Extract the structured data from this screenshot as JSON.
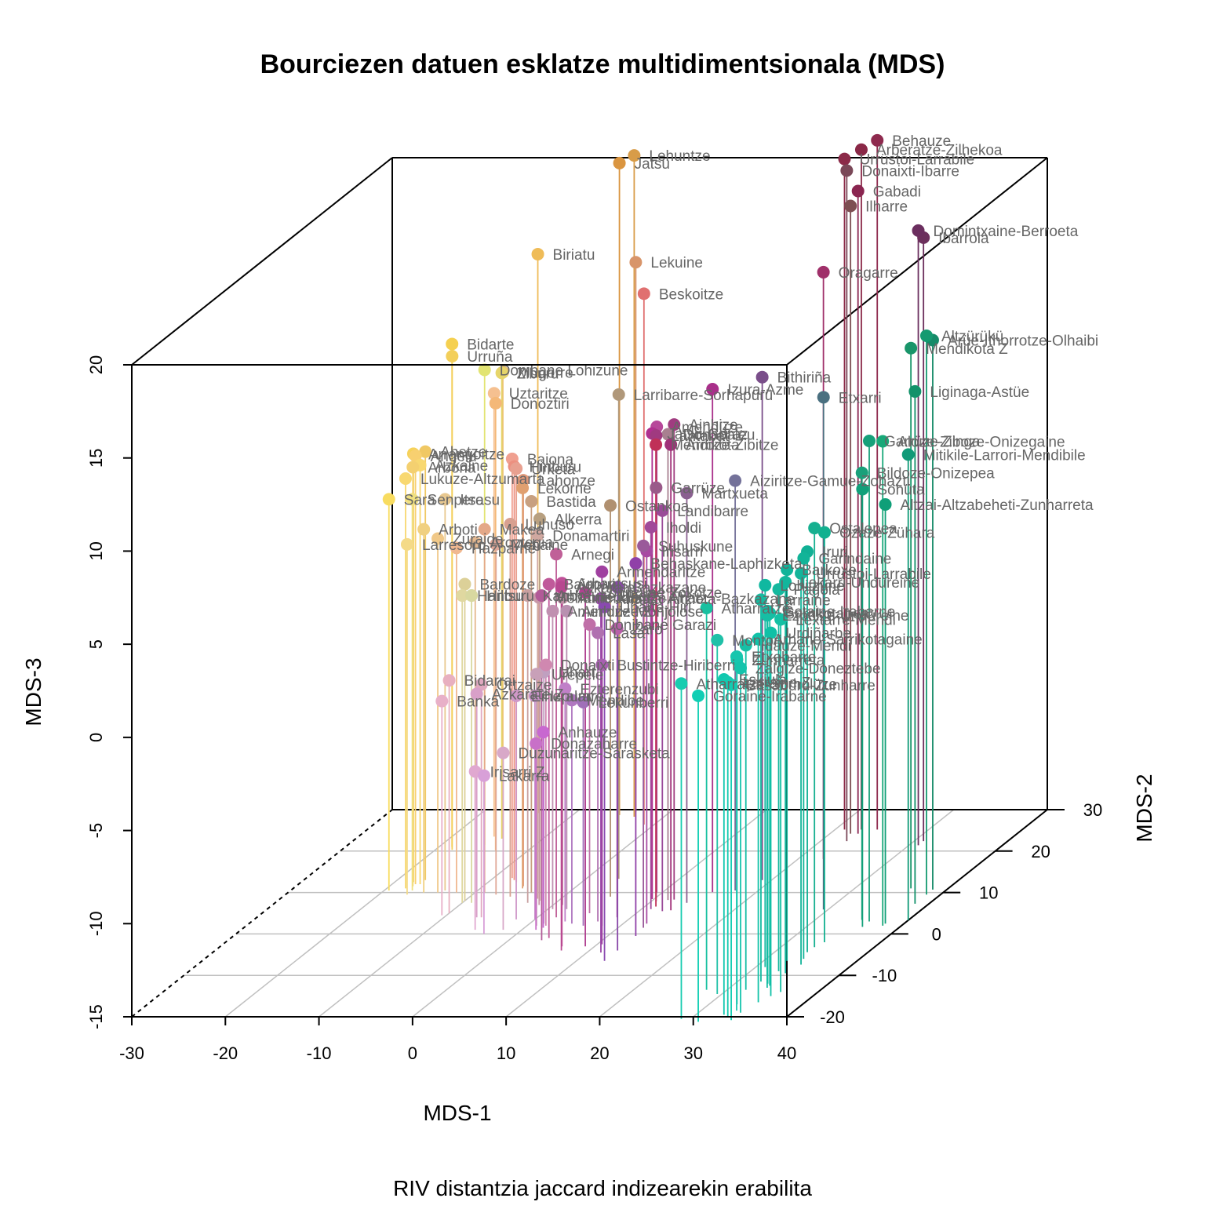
{
  "chart_data": {
    "type": "scatter",
    "title": "Bourciezen datuen esklatze multidimentsionala (MDS)",
    "caption": "RIV distantzia jaccard indizearekin erabilita",
    "xlabel": "MDS-1",
    "ylabel": "MDS-2",
    "zlabel": "MDS-3",
    "xlim": [
      -30,
      40
    ],
    "ylim": [
      -20,
      30
    ],
    "zlim": [
      -15,
      20
    ],
    "x_ticks": [
      "-30",
      "-20",
      "-10",
      "0",
      "10",
      "20",
      "30",
      "40"
    ],
    "y_ticks": [
      "-20",
      "-10",
      "0",
      "10",
      "20",
      "30"
    ],
    "z_ticks": [
      "-15",
      "-10",
      "-5",
      "0",
      "5",
      "10",
      "15",
      "20"
    ],
    "grid": true,
    "box": true,
    "drop_lines": true,
    "points": [
      {
        "label": "Behauze",
        "x": 24.5,
        "y": 25.2,
        "z": 22.0,
        "color": "#8e2a4e"
      },
      {
        "label": "Arberatze-Zilhekoa",
        "x": 22.8,
        "y": 25.2,
        "z": 21.5,
        "color": "#8a2847"
      },
      {
        "label": "Urrüstoi-Larrabile",
        "x": 21.0,
        "y": 25.2,
        "z": 21.0,
        "color": "#8b2a48"
      },
      {
        "label": "Donaixti-Ibarre",
        "x": 22.8,
        "y": 22.4,
        "z": 21.0,
        "color": "#7a4858"
      },
      {
        "label": "Gabadi",
        "x": 23.0,
        "y": 24.2,
        "z": 19.5,
        "color": "#8a2550"
      },
      {
        "label": "Ilharre",
        "x": 22.2,
        "y": 24.2,
        "z": 18.7,
        "color": "#7d4e52"
      },
      {
        "label": "Domintxaine-Berroeta",
        "x": 31.0,
        "y": 21.4,
        "z": 18.0,
        "color": "#6b2e5f"
      },
      {
        "label": "Ibarrola",
        "x": 31.0,
        "y": 22.4,
        "z": 17.4,
        "color": "#6c2f5c"
      },
      {
        "label": "Oragarre",
        "x": 22.7,
        "y": 18.1,
        "z": 16.5,
        "color": "#a0306a"
      },
      {
        "label": "Lehuntze",
        "x": -3.2,
        "y": 28.3,
        "z": 20.5,
        "color": "#d89c48"
      },
      {
        "label": "Jatsu",
        "x": -5.0,
        "y": 28.7,
        "z": 20.0,
        "color": "#da9540"
      },
      {
        "label": "Biriatu",
        "x": -14.0,
        "y": 29.2,
        "z": 15.0,
        "color": "#efbc58"
      },
      {
        "label": "Lekuine",
        "x": -3.7,
        "y": 29.5,
        "z": 14.5,
        "color": "#d8956a"
      },
      {
        "label": "Beskoitze",
        "x": -1.1,
        "y": 26.4,
        "z": 13.5,
        "color": "#e07070"
      },
      {
        "label": "Bidarte",
        "x": -18.6,
        "y": 21.0,
        "z": 12.0,
        "color": "#f5d050"
      },
      {
        "label": "Urruña",
        "x": -18.2,
        "y": 20.3,
        "z": 11.5,
        "color": "#f3cf5a"
      },
      {
        "label": "Donibane Lohizune",
        "x": -15.4,
        "y": 21.5,
        "z": 10.5,
        "color": "#e2e472"
      },
      {
        "label": "Ziburu",
        "x": -14.4,
        "y": 23.0,
        "z": 10.0,
        "color": "#e6d56a"
      },
      {
        "label": "Mugerre",
        "x": -14.4,
        "y": 23.2,
        "z": 10.0,
        "color": "#ecc070"
      },
      {
        "label": "Donoztiri",
        "x": -13.5,
        "y": 20.2,
        "z": 9.0,
        "color": "#f4b878"
      },
      {
        "label": "Uztaritze",
        "x": -15.5,
        "y": 23.5,
        "z": 8.8,
        "color": "#f5c090"
      },
      {
        "label": "Larribarre-Sorhapürü",
        "x": 3.5,
        "y": 13.3,
        "z": 11.0,
        "color": "#b0987a"
      },
      {
        "label": "Donapaleu",
        "x": 11.6,
        "y": 8.2,
        "z": 10.0,
        "color": "#a88090"
      },
      {
        "label": "Jatsu-Garaz",
        "x": 9.8,
        "y": 8.4,
        "z": 10.0,
        "color": "#b03090"
      },
      {
        "label": "Lantabat",
        "x": 10.5,
        "y": 7.9,
        "z": 10.0,
        "color": "#a03a80"
      },
      {
        "label": "Mendikota",
        "x": 11.2,
        "y": 6.6,
        "z": 9.8,
        "color": "#c03058"
      },
      {
        "label": "Arroze-Zibitze",
        "x": 13.3,
        "y": 5.7,
        "z": 10.0,
        "color": "#a03078"
      },
      {
        "label": "Ainhize",
        "x": 12.2,
        "y": 8.3,
        "z": 10.5,
        "color": "#a03c80"
      },
      {
        "label": "Izura-Azme",
        "x": 15.3,
        "y": 10.1,
        "z": 12.0,
        "color": "#a92f8a"
      },
      {
        "label": "Bithiriña",
        "x": 19.0,
        "y": 13.0,
        "z": 12.0,
        "color": "#7a4e8a"
      },
      {
        "label": "Amendüze",
        "x": 9.4,
        "y": 10.0,
        "z": 10.0,
        "color": "#b7479a"
      },
      {
        "label": "Etxarri",
        "x": 29.5,
        "y": 5.9,
        "z": 12.5,
        "color": "#4a7080"
      },
      {
        "label": "Aiziritze-Gamue-Zohazti",
        "x": 17.5,
        "y": 10.5,
        "z": 7.0,
        "color": "#74729a"
      },
      {
        "label": "Altzürükü",
        "x": 38.5,
        "y": 9.5,
        "z": 15.0,
        "color": "#149a70"
      },
      {
        "label": "Arüe-Ithorrotze-Olhaibi",
        "x": 38.5,
        "y": 10.7,
        "z": 14.5,
        "color": "#158a68"
      },
      {
        "label": "Mendikota Z",
        "x": 36.0,
        "y": 11.0,
        "z": 14.0,
        "color": "#19956a"
      },
      {
        "label": "Liginaga-Astüe",
        "x": 38.5,
        "y": 7.3,
        "z": 12.5,
        "color": "#12926a"
      },
      {
        "label": "Aloze-Ziboze-Onizegaine",
        "x": 38.0,
        "y": 2.0,
        "z": 11.0,
        "color": "#18a878"
      },
      {
        "label": "Garrüze-Zinga",
        "x": 36.0,
        "y": 3.0,
        "z": 10.8,
        "color": "#17a07a"
      },
      {
        "label": "Mitikile-Larrori-Mendibile",
        "x": 40.0,
        "y": 3.3,
        "z": 10.0,
        "color": "#119a78"
      },
      {
        "label": "Bildoze-Onizepea",
        "x": 35.0,
        "y": 3.4,
        "z": 9.0,
        "color": "#1aa07a"
      },
      {
        "label": "Sohüta",
        "x": 36.0,
        "y": 1.7,
        "z": 8.5,
        "color": "#12a07a"
      },
      {
        "label": "Altzai-Altzabeheti-Zunharreta",
        "x": 38.0,
        "y": 2.5,
        "z": 7.5,
        "color": "#0f9f78"
      },
      {
        "label": "Ozaze-Zühara",
        "x": 34.0,
        "y": -2.0,
        "z": 7.0,
        "color": "#12b090"
      },
      {
        "label": "Ostalepea",
        "x": 33.6,
        "y": -3.2,
        "z": 7.5,
        "color": "#16b090"
      },
      {
        "label": "Iruri",
        "x": 33.5,
        "y": -4.4,
        "z": 6.5,
        "color": "#10b095"
      },
      {
        "label": "Garindaine",
        "x": 34.0,
        "y": -6.0,
        "z": 6.5,
        "color": "#12b498"
      },
      {
        "label": "Urrustoi-Larrabile",
        "x": 34.5,
        "y": -7.4,
        "z": 6.0,
        "color": "#14b49a"
      },
      {
        "label": "Barkoxe",
        "x": 32.5,
        "y": -6.5,
        "z": 6.0,
        "color": "#10b49a"
      },
      {
        "label": "Lakarri-Undureine",
        "x": 34.0,
        "y": -9.5,
        "z": 6.0,
        "color": "#12b69c"
      },
      {
        "label": "Pagola",
        "x": 33.0,
        "y": -9.0,
        "z": 5.5,
        "color": "#15b89e"
      },
      {
        "label": "Lohitzüne",
        "x": 31.0,
        "y": -8.0,
        "z": 5.5,
        "color": "#10b8a0"
      },
      {
        "label": "Atharratze",
        "x": 27.8,
        "y": -13.5,
        "z": 5.5,
        "color": "#18c0a0"
      },
      {
        "label": "Larraine",
        "x": 32.5,
        "y": -11.5,
        "z": 5.5,
        "color": "#16baa0"
      },
      {
        "label": "Gotaine-Irabarne",
        "x": 33.5,
        "y": -12.0,
        "z": 5.0,
        "color": "#14bca2"
      },
      {
        "label": "Sarrikotapea",
        "x": 34.0,
        "y": -12.5,
        "z": 5.0,
        "color": "#12bca2"
      },
      {
        "label": "Ezpeize-Ündüreine",
        "x": 34.0,
        "y": -13.0,
        "z": 5.0,
        "color": "#16bea4"
      },
      {
        "label": "Lextarre-Mendi",
        "x": 36.0,
        "y": -14.0,
        "z": 5.0,
        "color": "#14c0a4"
      },
      {
        "label": "Urdiñarbe",
        "x": 35.5,
        "y": -15.0,
        "z": 4.5,
        "color": "#10c0a6"
      },
      {
        "label": "Arhane-Sarrikotagaine",
        "x": 35.0,
        "y": -16.5,
        "z": 4.5,
        "color": "#12c2a8"
      },
      {
        "label": "Montori",
        "x": 29.5,
        "y": -14.5,
        "z": 4.0,
        "color": "#20c0a8"
      },
      {
        "label": "Idauze-Mendi",
        "x": 32.0,
        "y": -13.5,
        "z": 3.5,
        "color": "#18bfa6"
      },
      {
        "label": "Zunharreta",
        "x": 33.0,
        "y": -17.0,
        "z": 3.5,
        "color": "#14c4aa"
      },
      {
        "label": "Zalgize-Doneztebe",
        "x": 34.5,
        "y": -19.0,
        "z": 3.5,
        "color": "#14c4ac"
      },
      {
        "label": "Etxebarre",
        "x": 33.8,
        "y": -18.5,
        "z": 4.0,
        "color": "#16c6ae"
      },
      {
        "label": "Eskiula",
        "x": 33.0,
        "y": -19.5,
        "z": 3.0,
        "color": "#12c8b0"
      },
      {
        "label": "Atharratze-Sorholüze",
        "x": 29.0,
        "y": -20.5,
        "z": 3.0,
        "color": "#18ccb0"
      },
      {
        "label": "Larraine Z",
        "x": 33.8,
        "y": -20.2,
        "z": 3.0,
        "color": "#14cab0"
      },
      {
        "label": "Basabürü-Zunharre",
        "x": 34.5,
        "y": -20.8,
        "z": 3.0,
        "color": "#12ccb2"
      },
      {
        "label": "Goraine-Irabarne",
        "x": 31.2,
        "y": -21.2,
        "z": 2.5,
        "color": "#10ceb4"
      },
      {
        "label": "Martxueta",
        "x": 14.0,
        "y": 7.5,
        "z": 7.0,
        "color": "#8a6090"
      },
      {
        "label": "Garrüze",
        "x": 10.0,
        "y": 8.8,
        "z": 7.0,
        "color": "#9a5a8a"
      },
      {
        "label": "Landibarre",
        "x": 12.5,
        "y": 5.5,
        "z": 6.5,
        "color": "#9a4a98"
      },
      {
        "label": "Iholdi",
        "x": 11.0,
        "y": 6.0,
        "z": 5.5,
        "color": "#a04a9a"
      },
      {
        "label": "Irisarri",
        "x": 12.5,
        "y": 2.5,
        "z": 5.0,
        "color": "#a84aa2"
      },
      {
        "label": "Suhuskune",
        "x": 12.7,
        "y": 1.5,
        "z": 5.5,
        "color": "#9a5a9a"
      },
      {
        "label": "Behaskane-Laphizketa",
        "x": 13.0,
        "y": -0.5,
        "z": 5.0,
        "color": "#9040a8"
      },
      {
        "label": "Armendaritze",
        "x": 10.5,
        "y": -2.5,
        "z": 5.0,
        "color": "#a040a0"
      },
      {
        "label": "Bazkazane",
        "x": 13.0,
        "y": -4.0,
        "z": 4.5,
        "color": "#8848a8"
      },
      {
        "label": "Ahatsa-Altzieta-Bazkazane",
        "x": 11.5,
        "y": -4.5,
        "z": 4.0,
        "color": "#9a48a8"
      },
      {
        "label": "Uharte-Hiri",
        "x": 13.0,
        "y": -6.5,
        "z": 4.0,
        "color": "#8a4ab0"
      },
      {
        "label": "Lohitzüne Zokotze",
        "x": 9.0,
        "y": -3.0,
        "z": 4.0,
        "color": "#b04090"
      },
      {
        "label": "Azkarate",
        "x": 7.0,
        "y": -4.0,
        "z": 4.5,
        "color": "#b84890"
      },
      {
        "label": "Arhantsusi",
        "x": 6.5,
        "y": -3.0,
        "z": 4.5,
        "color": "#c05098"
      },
      {
        "label": "Baigorri",
        "x": 4.0,
        "y": -1.0,
        "z": 4.0,
        "color": "#c05a9a"
      },
      {
        "label": "Anhauze Uhart",
        "x": 3.5,
        "y": -1.5,
        "z": 3.5,
        "color": "#b25a98"
      },
      {
        "label": "Arnegi",
        "x": 2.0,
        "y": 4.0,
        "z": 4.5,
        "color": "#c06098"
      },
      {
        "label": "Alkerra",
        "x": -2.0,
        "y": 8.0,
        "z": 5.5,
        "color": "#b8a080"
      },
      {
        "label": "Ostankoa",
        "x": 5.0,
        "y": 9.0,
        "z": 6.0,
        "color": "#b09070"
      },
      {
        "label": "Bastida",
        "x": -4.0,
        "y": 10.0,
        "z": 6.0,
        "color": "#c8a080"
      },
      {
        "label": "Lekorne",
        "x": -5.5,
        "y": 11.0,
        "z": 6.5,
        "color": "#e0a070"
      },
      {
        "label": "Lahonze",
        "x": -5.7,
        "y": 11.5,
        "z": 6.8,
        "color": "#e09878"
      },
      {
        "label": "Urketa",
        "x": -7.0,
        "y": 12.5,
        "z": 7.2,
        "color": "#e8a090"
      },
      {
        "label": "Hiriburu",
        "x": -7.5,
        "y": 13.0,
        "z": 7.2,
        "color": "#ec9080"
      },
      {
        "label": "Baiona",
        "x": -8.0,
        "y": 13.5,
        "z": 7.5,
        "color": "#f0a090"
      },
      {
        "label": "Angelu",
        "x": -17.5,
        "y": 12.0,
        "z": 8.0,
        "color": "#f8d070"
      },
      {
        "label": "Arrangoitze",
        "x": -18.0,
        "y": 12.5,
        "z": 8.0,
        "color": "#f6d25a"
      },
      {
        "label": "Ahetze",
        "x": -17.0,
        "y": 13.0,
        "z": 8.0,
        "color": "#f0c864"
      },
      {
        "label": "Arbona",
        "x": -17.5,
        "y": 11.5,
        "z": 7.5,
        "color": "#f4d070"
      },
      {
        "label": "Azkaine",
        "x": -17.0,
        "y": 12.0,
        "z": 7.5,
        "color": "#f8d870"
      },
      {
        "label": "Lukuze-Altzumarta",
        "x": -18.0,
        "y": 11.0,
        "z": 7.0,
        "color": "#f8d870"
      },
      {
        "label": "Sara",
        "x": -19.5,
        "y": 10.5,
        "z": 6.0,
        "color": "#f8dc60"
      },
      {
        "label": "Senpere",
        "x": -17.0,
        "y": 10.5,
        "z": 6.0,
        "color": "#f0e080"
      },
      {
        "label": "Itsasu",
        "x": -13.5,
        "y": 10.5,
        "z": 6.0,
        "color": "#e8c890"
      },
      {
        "label": "Arboti",
        "x": -15.5,
        "y": 10.0,
        "z": 4.5,
        "color": "#f0d080"
      },
      {
        "label": "Larresoro",
        "x": -17.0,
        "y": 9.5,
        "z": 3.8,
        "color": "#f4da88"
      },
      {
        "label": "Zuraide",
        "x": -14.0,
        "y": 10.0,
        "z": 4.0,
        "color": "#f0c888"
      },
      {
        "label": "Luhuso",
        "x": -5.7,
        "y": 9.0,
        "z": 5.0,
        "color": "#d8a090"
      },
      {
        "label": "Makea",
        "x": -9.0,
        "y": 10.0,
        "z": 4.5,
        "color": "#e4a888"
      },
      {
        "label": "Hazparne",
        "x": -12.0,
        "y": 10.0,
        "z": 3.5,
        "color": "#f0b890"
      },
      {
        "label": "Mehaine",
        "x": -7.5,
        "y": 9.5,
        "z": 3.8,
        "color": "#e0a898"
      },
      {
        "label": "Aroztegia",
        "x": -10.0,
        "y": 10.0,
        "z": 3.8,
        "color": "#e4b890"
      },
      {
        "label": "Donamartiri",
        "x": -2.5,
        "y": 8.5,
        "z": 4.5,
        "color": "#d0a8a0"
      },
      {
        "label": "Bardoze",
        "x": -10.0,
        "y": 8.0,
        "z": 2.0,
        "color": "#dcd098"
      },
      {
        "label": "Hanburu",
        "x": -10.0,
        "y": 7.5,
        "z": 1.5,
        "color": "#e0d8a0"
      },
      {
        "label": "Hiltsu",
        "x": -9.0,
        "y": 7.5,
        "z": 1.5,
        "color": "#d8d8a0"
      },
      {
        "label": "Kanbo",
        "x": -3.0,
        "y": 7.5,
        "z": 1.5,
        "color": "#c8a0a0"
      },
      {
        "label": "Mehaine Jatsu",
        "x": -1.5,
        "y": 7.0,
        "z": 1.5,
        "color": "#c898a8"
      },
      {
        "label": "Armendaritze Ahatz",
        "x": 1.0,
        "y": 7.0,
        "z": 1.5,
        "color": "#c090a8"
      },
      {
        "label": "Ainhize-Monjolose",
        "x": 2.0,
        "y": 6.0,
        "z": 1.0,
        "color": "#b890b0"
      },
      {
        "label": "Amendüze Z",
        "x": 0.5,
        "y": 6.0,
        "z": 1.0,
        "color": "#c090b0"
      },
      {
        "label": "Donibane Garazi",
        "x": 5.0,
        "y": 5.0,
        "z": 0.5,
        "color": "#c070a8"
      },
      {
        "label": "Zaro",
        "x": 8.5,
        "y": 4.0,
        "z": 0.5,
        "color": "#b860a8"
      },
      {
        "label": "Lasa",
        "x": 7.0,
        "y": 3.0,
        "z": 0.5,
        "color": "#b070b0"
      },
      {
        "label": "Bustintze-Hiriberri",
        "x": 8.0,
        "y": 2.0,
        "z": -1.0,
        "color": "#a860b0"
      },
      {
        "label": "Donaixti",
        "x": 2.0,
        "y": 2.0,
        "z": -1.0,
        "color": "#d088b0"
      },
      {
        "label": "Urepele",
        "x": 1.0,
        "y": 2.0,
        "z": -1.5,
        "color": "#c8a0b8"
      },
      {
        "label": "Uhart",
        "x": 1.5,
        "y": 2.5,
        "z": -1.5,
        "color": "#c0a0c0"
      },
      {
        "label": "Bidarrai",
        "x": -10.0,
        "y": 5.0,
        "z": -2.5,
        "color": "#e8b0c0"
      },
      {
        "label": "Banka",
        "x": -10.5,
        "y": 4.5,
        "z": -3.5,
        "color": "#e8b0c8"
      },
      {
        "label": "Ortzaize",
        "x": -6.0,
        "y": 4.0,
        "z": -2.5,
        "color": "#e0a8c0"
      },
      {
        "label": "Azkarate Z",
        "x": -6.5,
        "y": 4.0,
        "z": -3.0,
        "color": "#d8a0c8"
      },
      {
        "label": "Eiheralarre",
        "x": -2.0,
        "y": 3.5,
        "z": -3.0,
        "color": "#d098c8"
      },
      {
        "label": "Izpura",
        "x": 0.0,
        "y": 3.5,
        "z": -3.0,
        "color": "#c890c8"
      },
      {
        "label": "Ezterenzubi",
        "x": 3.5,
        "y": 3.0,
        "z": -2.5,
        "color": "#c080c8"
      },
      {
        "label": "Lekunberri",
        "x": 6.0,
        "y": 2.0,
        "z": -3.0,
        "color": "#a070b8"
      },
      {
        "label": "Mendibe",
        "x": 4.5,
        "y": 2.5,
        "z": -3.0,
        "color": "#b078c0"
      },
      {
        "label": "Anhauze",
        "x": 2.0,
        "y": 1.5,
        "z": -4.5,
        "color": "#c868d0"
      },
      {
        "label": "Duzunaritze-Sarasketa",
        "x": -2.0,
        "y": 1.0,
        "z": -5.5,
        "color": "#d8a8c8"
      },
      {
        "label": "Donazaharre",
        "x": 1.5,
        "y": 1.0,
        "z": -5.0,
        "color": "#c870c8"
      },
      {
        "label": "Irisarri Z",
        "x": -5.0,
        "y": 1.0,
        "z": -6.5,
        "color": "#e0a8d0"
      },
      {
        "label": "Lakarra",
        "x": -3.5,
        "y": 0.0,
        "z": -6.5,
        "color": "#d8a0d8"
      }
    ]
  }
}
